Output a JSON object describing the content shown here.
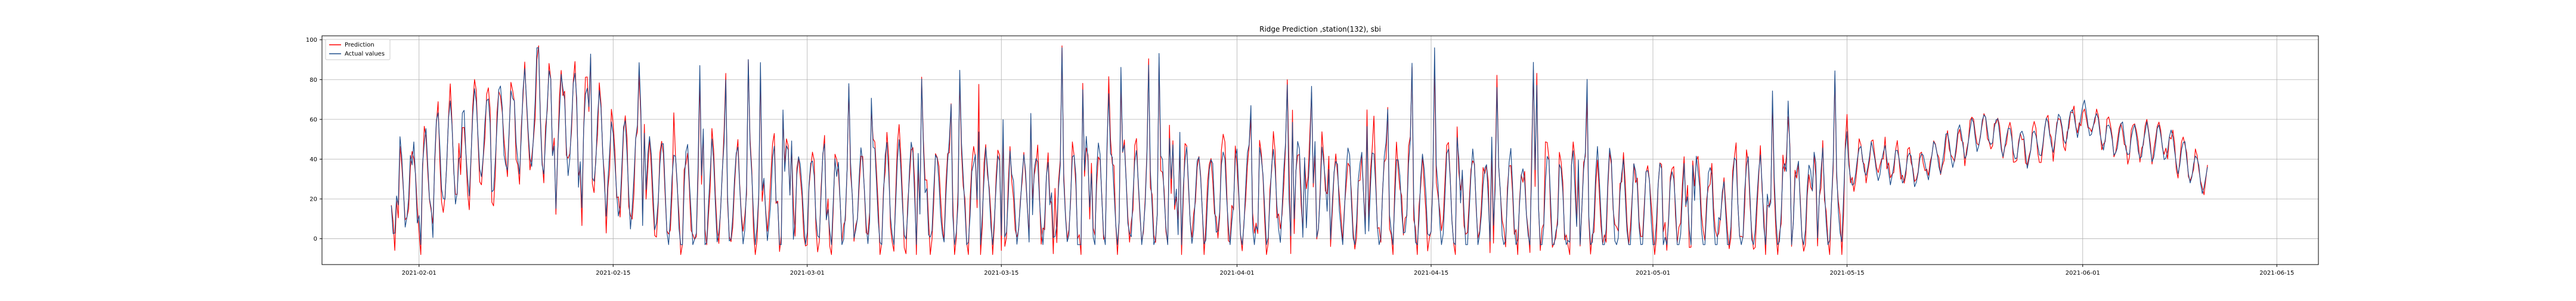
{
  "chart_data": {
    "type": "line",
    "title": "Ridge Prediction ,station(132), sbi",
    "xlabel": "",
    "ylabel": "",
    "x_ticks": [
      "2021-02-01",
      "2021-02-15",
      "2021-03-01",
      "2021-03-15",
      "2021-04-01",
      "2021-04-15",
      "2021-05-01",
      "2021-05-15",
      "2021-06-01",
      "2021-06-15"
    ],
    "y_ticks": [
      0,
      20,
      40,
      60,
      80,
      100
    ],
    "xlim": [
      "2021-01-25",
      "2021-06-18"
    ],
    "ylim": [
      -13,
      102
    ],
    "data_range": [
      "2021-01-30",
      "2021-06-10"
    ],
    "grid": true,
    "legend": {
      "position": "upper-left",
      "entries": [
        "Prediction",
        "Actual values"
      ]
    },
    "series": [
      {
        "name": "Prediction",
        "color": "#ff0000"
      },
      {
        "name": "Actual values",
        "color": "#1f4e8c"
      }
    ],
    "keypoints": [
      [
        "2021-01-30",
        25
      ],
      [
        "2021-02-01",
        30
      ],
      [
        "2021-02-03",
        40
      ],
      [
        "2021-02-05",
        50
      ],
      [
        "2021-02-07",
        55
      ],
      [
        "2021-02-09",
        58
      ],
      [
        "2021-02-11",
        60
      ],
      [
        "2021-02-13",
        58
      ],
      [
        "2021-02-15",
        35
      ],
      [
        "2021-02-20",
        22
      ],
      [
        "2021-03-01",
        22
      ],
      [
        "2021-03-15",
        20
      ],
      [
        "2021-04-01",
        22
      ],
      [
        "2021-04-15",
        20
      ],
      [
        "2021-05-01",
        15
      ],
      [
        "2021-05-14",
        18
      ],
      [
        "2021-05-16",
        40
      ],
      [
        "2021-05-20",
        35
      ],
      [
        "2021-05-25",
        55
      ],
      [
        "2021-05-28",
        45
      ],
      [
        "2021-06-01",
        62
      ],
      [
        "2021-06-03",
        50
      ],
      [
        "2021-06-07",
        48
      ],
      [
        "2021-06-10",
        30
      ]
    ]
  }
}
